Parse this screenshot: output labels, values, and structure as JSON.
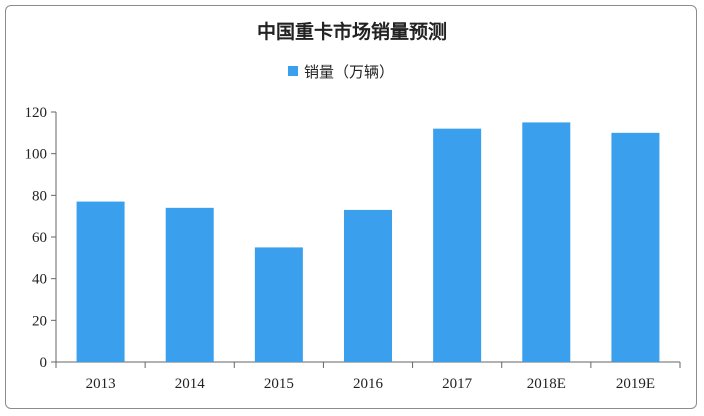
{
  "chart_data": {
    "type": "bar",
    "title": "中国重卡市场销量预测",
    "categories": [
      "2013",
      "2014",
      "2015",
      "2016",
      "2017",
      "2018E",
      "2019E"
    ],
    "series": [
      {
        "name": "销量（万辆）",
        "values": [
          77,
          74,
          55,
          73,
          112,
          115,
          110
        ]
      }
    ],
    "ylim": [
      0,
      120
    ],
    "yticks": [
      0,
      20,
      40,
      60,
      80,
      100,
      120
    ],
    "grid": false,
    "legend_position": "top-center",
    "bar_color": "#3a9fed"
  }
}
